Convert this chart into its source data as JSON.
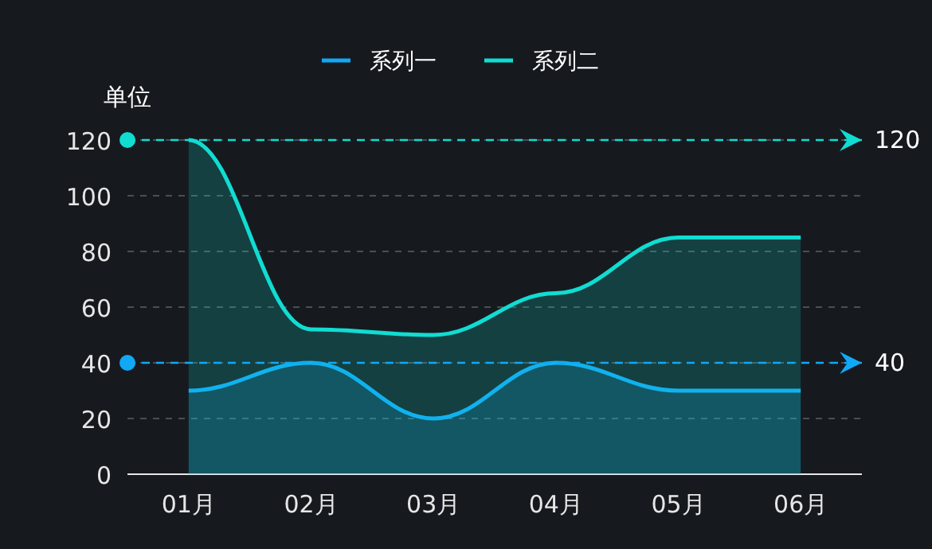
{
  "chart_data": {
    "type": "area",
    "ylabel": "单位",
    "categories": [
      "01月",
      "02月",
      "03月",
      "04月",
      "05月",
      "06月"
    ],
    "series": [
      {
        "name": "系列一",
        "color": "#11a8f5",
        "values": [
          30,
          40,
          20,
          40,
          30,
          30
        ]
      },
      {
        "name": "系列二",
        "color": "#11dcd2",
        "values": [
          120,
          52,
          50,
          65,
          85,
          85
        ]
      }
    ],
    "ylim": [
      0,
      120
    ],
    "yticks": [
      0,
      20,
      40,
      60,
      80,
      100,
      120
    ],
    "grid": "y",
    "legend": "top",
    "marker": "none",
    "line_style": "solid",
    "ref_lines": [
      {
        "axis": "y",
        "value": 120,
        "label": "120",
        "color": "#11dcd2",
        "line_style": "dashed"
      },
      {
        "axis": "y",
        "value": 40,
        "label": "40",
        "color": "#11a8f5",
        "line_style": "dashed"
      }
    ]
  }
}
